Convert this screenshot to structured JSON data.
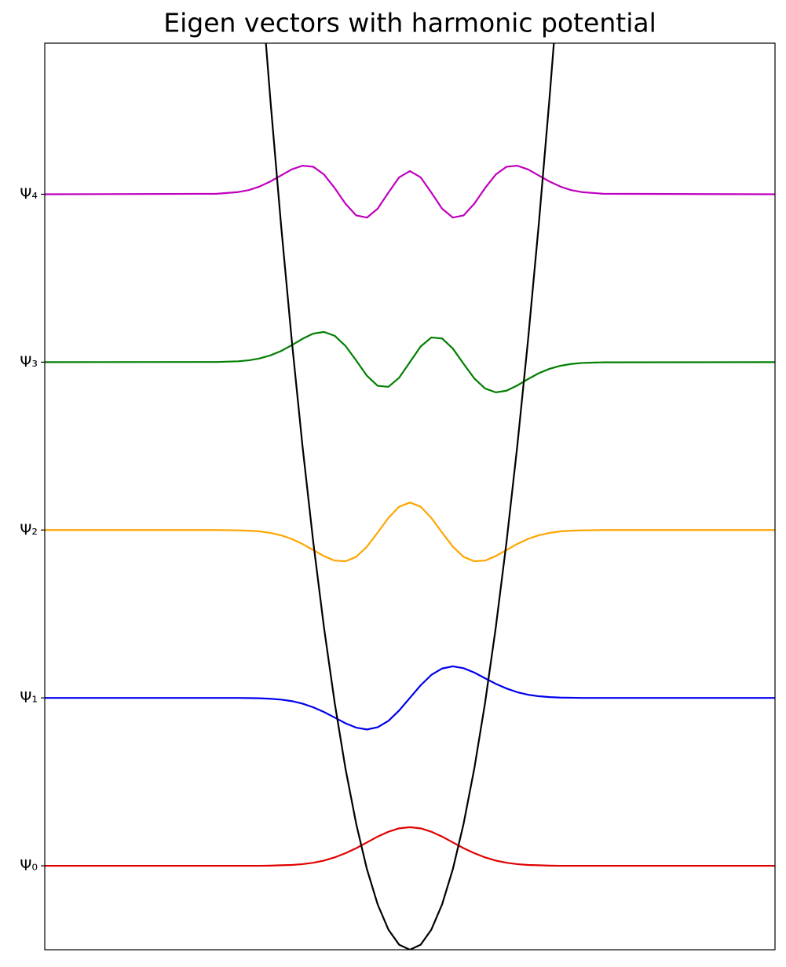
{
  "chart_data": {
    "type": "line",
    "title": "Eigen vectors with harmonic potential",
    "x": [
      -8.5,
      -4.5,
      -4,
      -3.75,
      -3.5,
      -3.25,
      -3,
      -2.75,
      -2.5,
      -2.25,
      -2,
      -1.75,
      -1.5,
      -1.25,
      -1,
      -0.75,
      -0.5,
      -0.25,
      0,
      0.25,
      0.5,
      0.75,
      1,
      1.25,
      1.5,
      1.75,
      2,
      2.25,
      2.5,
      2.75,
      3,
      3.25,
      3.5,
      3.75,
      4,
      4.5,
      8.5
    ],
    "series": [
      {
        "color": "#e00000",
        "values": [
          0,
          0,
          0,
          0,
          0,
          0.001,
          0.003,
          0.005,
          0.01,
          0.018,
          0.031,
          0.05,
          0.075,
          0.105,
          0.139,
          0.174,
          0.203,
          0.223,
          0.23,
          0.223,
          0.203,
          0.174,
          0.139,
          0.105,
          0.075,
          0.05,
          0.031,
          0.018,
          0.01,
          0.005,
          0.003,
          0.001,
          0,
          0,
          0,
          0,
          0
        ]
      },
      {
        "color": "#0000ee",
        "values": [
          1,
          1,
          1,
          0.999,
          0.998,
          0.995,
          0.99,
          0.981,
          0.966,
          0.944,
          0.916,
          0.883,
          0.849,
          0.823,
          0.812,
          0.825,
          0.863,
          0.925,
          1,
          1.075,
          1.137,
          1.175,
          1.188,
          1.177,
          1.151,
          1.117,
          1.084,
          1.056,
          1.034,
          1.019,
          1.01,
          1.005,
          1.002,
          1.001,
          1,
          1,
          1
        ]
      },
      {
        "color": "#ffa500",
        "values": [
          2,
          2,
          1.998,
          1.996,
          1.992,
          1.983,
          1.969,
          1.947,
          1.917,
          1.881,
          1.845,
          1.818,
          1.814,
          1.84,
          1.901,
          1.985,
          2.072,
          2.139,
          2.164,
          2.139,
          2.072,
          1.985,
          1.901,
          1.84,
          1.814,
          1.818,
          1.845,
          1.881,
          1.917,
          1.947,
          1.969,
          1.983,
          1.992,
          1.996,
          1.998,
          2,
          2
        ]
      },
      {
        "color": "#007f00",
        "values": [
          3,
          3.001,
          3.005,
          3.011,
          3.022,
          3.04,
          3.066,
          3.101,
          3.139,
          3.17,
          3.18,
          3.157,
          3.097,
          3.01,
          2.919,
          2.859,
          2.853,
          2.907,
          3,
          3.093,
          3.147,
          3.141,
          3.081,
          2.99,
          2.903,
          2.843,
          2.82,
          2.83,
          2.861,
          2.899,
          2.934,
          2.96,
          2.978,
          2.989,
          2.995,
          2.999,
          3
        ]
      },
      {
        "color": "#bf00bf",
        "values": [
          4,
          4.003,
          4.013,
          4.025,
          4.046,
          4.076,
          4.112,
          4.148,
          4.17,
          4.164,
          4.118,
          4.037,
          3.944,
          3.874,
          3.861,
          3.914,
          4.01,
          4.101,
          4.138,
          4.101,
          4.01,
          3.914,
          3.861,
          3.874,
          3.944,
          4.037,
          4.118,
          4.164,
          4.17,
          4.148,
          4.112,
          4.076,
          4.046,
          4.025,
          4.013,
          4.003,
          4
        ]
      },
      {
        "color": "#000000",
        "values": [
          null,
          null,
          null,
          null,
          5.38,
          4.57,
          3.82,
          3.13,
          2.5,
          1.93,
          1.42,
          0.97,
          0.58,
          0.25,
          -0.02,
          -0.23,
          -0.38,
          -0.47,
          -0.5,
          -0.47,
          -0.38,
          -0.23,
          -0.02,
          0.25,
          0.58,
          0.97,
          1.42,
          1.93,
          2.5,
          3.13,
          3.82,
          4.57,
          5.38,
          null,
          null,
          null,
          null
        ]
      }
    ],
    "xlim": [
      -8.5,
      8.5
    ],
    "ylim": [
      -0.5,
      4.9
    ],
    "yticks": [
      {
        "value": 0,
        "label": "Ψ₀"
      },
      {
        "value": 1,
        "label": "Ψ₁"
      },
      {
        "value": 2,
        "label": "Ψ₂"
      },
      {
        "value": 3,
        "label": "Ψ₃"
      },
      {
        "value": 4,
        "label": "Ψ₄"
      }
    ]
  }
}
